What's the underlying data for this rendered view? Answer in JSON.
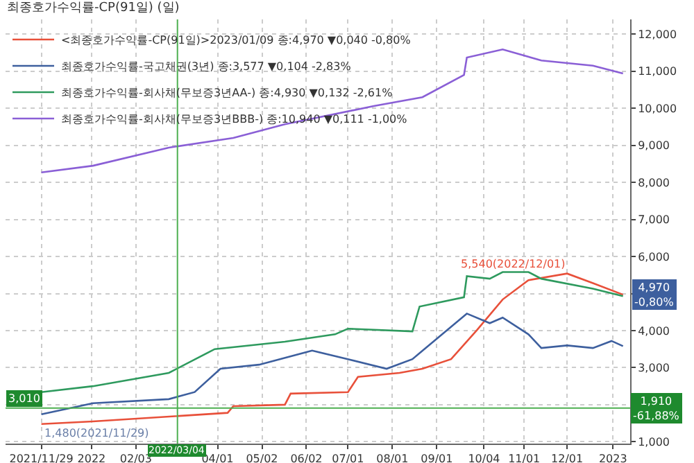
{
  "chart_data": {
    "type": "line",
    "title": "최종호가수익률-CP(91일) (일)",
    "series": [
      {
        "name": "<최종호가수익률-CP(91일)>2023/01/09 종:4,970 ▼0,040 -0,80%",
        "color": "#e8503a",
        "x": [
          "2021-11-29",
          "2022-01-04",
          "2022-04-08",
          "2022-04-12",
          "2022-05-18",
          "2022-05-22",
          "2022-07-01",
          "2022-07-08",
          "2022-08-06",
          "2022-08-22",
          "2022-09-11",
          "2022-09-29",
          "2022-10-17",
          "2022-11-04",
          "2022-12-01",
          "2022-12-19",
          "2023-01-09"
        ],
        "values": [
          1480,
          1550,
          1780,
          1960,
          2000,
          2300,
          2340,
          2750,
          2860,
          2970,
          3230,
          4010,
          4840,
          5360,
          5540,
          5280,
          4970
        ]
      },
      {
        "name": "최종호가수익률-국고채권(3년) 종:3,577 ▼0,104 -2,83%",
        "color": "#3d5f9e",
        "x": [
          "2021-11-29",
          "2022-01-04",
          "2022-02-26",
          "2022-03-16",
          "2022-04-03",
          "2022-04-30",
          "2022-06-06",
          "2022-07-01",
          "2022-07-28",
          "2022-08-15",
          "2022-09-22",
          "2022-10-08",
          "2022-10-17",
          "2022-11-04",
          "2022-11-13",
          "2022-12-01",
          "2022-12-19",
          "2023-01-01",
          "2023-01-09"
        ],
        "values": [
          1740,
          2040,
          2150,
          2340,
          2970,
          3080,
          3460,
          3230,
          2970,
          3230,
          4460,
          4200,
          4350,
          3900,
          3530,
          3600,
          3530,
          3720,
          3580
        ]
      },
      {
        "name": "최종호가수익률-회사채(무보증3년AA-) 종:4,930 ▼0,132 -2,61%",
        "color": "#2e9a5e",
        "x": [
          "2021-11-29",
          "2022-01-04",
          "2022-02-26",
          "2022-03-30",
          "2022-05-18",
          "2022-06-22",
          "2022-07-01",
          "2022-08-15",
          "2022-08-20",
          "2022-09-20",
          "2022-09-22",
          "2022-10-08",
          "2022-10-17",
          "2022-11-04",
          "2022-11-13",
          "2022-12-19",
          "2023-01-09"
        ],
        "values": [
          2340,
          2500,
          2860,
          3500,
          3700,
          3900,
          4050,
          3980,
          4650,
          4900,
          5470,
          5400,
          5580,
          5580,
          5400,
          5130,
          4930
        ]
      },
      {
        "name": "최종호가수익률-회사채(무보증3년BBB-) 종:10,940 ▼0,111 -1,00%",
        "color": "#8a5fd6",
        "x": [
          "2021-11-29",
          "2022-01-04",
          "2022-02-26",
          "2022-04-12",
          "2022-05-18",
          "2022-07-19",
          "2022-08-22",
          "2022-09-20",
          "2022-09-22",
          "2022-10-17",
          "2022-11-13",
          "2022-12-19",
          "2023-01-09"
        ],
        "values": [
          8270,
          8450,
          8940,
          9200,
          9570,
          10060,
          10300,
          10900,
          11370,
          11590,
          11290,
          11150,
          10940
        ]
      }
    ],
    "xlim": [
      "2021-11-04",
      "2023-01-14"
    ],
    "xticks": [
      {
        "value": "2021-11-29",
        "label": "2021/11/29"
      },
      {
        "value": "2022-01-03",
        "label": "2022"
      },
      {
        "value": "2022-02-03",
        "label": "02/03"
      },
      {
        "value": "2022-04-01",
        "label": "04/01"
      },
      {
        "value": "2022-05-02",
        "label": "05/02"
      },
      {
        "value": "2022-06-02",
        "label": "06/02"
      },
      {
        "value": "2022-07-01",
        "label": "07/01"
      },
      {
        "value": "2022-08-01",
        "label": "08/01"
      },
      {
        "value": "2022-09-01",
        "label": "09/01"
      },
      {
        "value": "2022-10-04",
        "label": "10/04"
      },
      {
        "value": "2022-11-01",
        "label": "11/01"
      },
      {
        "value": "2022-12-01",
        "label": "12/01"
      },
      {
        "value": "2023-01-02",
        "label": "2023"
      }
    ],
    "ylim": [
      950,
      12400
    ],
    "yticks": [
      {
        "value": 1000,
        "label": "1,000"
      },
      {
        "value": 2000,
        "label": null
      },
      {
        "value": 3000,
        "label": "3,000"
      },
      {
        "value": 4000,
        "label": "4,000"
      },
      {
        "value": 5000,
        "label": null
      },
      {
        "value": 6000,
        "label": "6,000"
      },
      {
        "value": 7000,
        "label": "7,000"
      },
      {
        "value": 8000,
        "label": "8,000"
      },
      {
        "value": 9000,
        "label": "9,000"
      },
      {
        "value": 10000,
        "label": "10,000"
      },
      {
        "value": 11000,
        "label": "11,000"
      },
      {
        "value": 12000,
        "label": "12,000"
      }
    ],
    "ref_lines": [
      {
        "axis": "x",
        "value": "2022-03-04",
        "label": "2022/03/04",
        "color": "#4caf50"
      },
      {
        "axis": "y",
        "value": 1910,
        "label": "1,910\n-61,88%",
        "color": "#4caf50"
      }
    ],
    "annotations": [
      "3,010",
      {
        "text": "4,970\n-0,80%",
        "x": "2023-01-09",
        "y": 4970
      },
      {
        "text": "5,540(2022/12/01)",
        "x": "2022-12-01",
        "y": 5540
      },
      {
        "text": "1,480(2021/11/29)",
        "x": "2021-11-29",
        "y": 1480
      }
    ],
    "grid": true,
    "legend": "top left",
    "marker": "none",
    "line_style": "solid"
  }
}
